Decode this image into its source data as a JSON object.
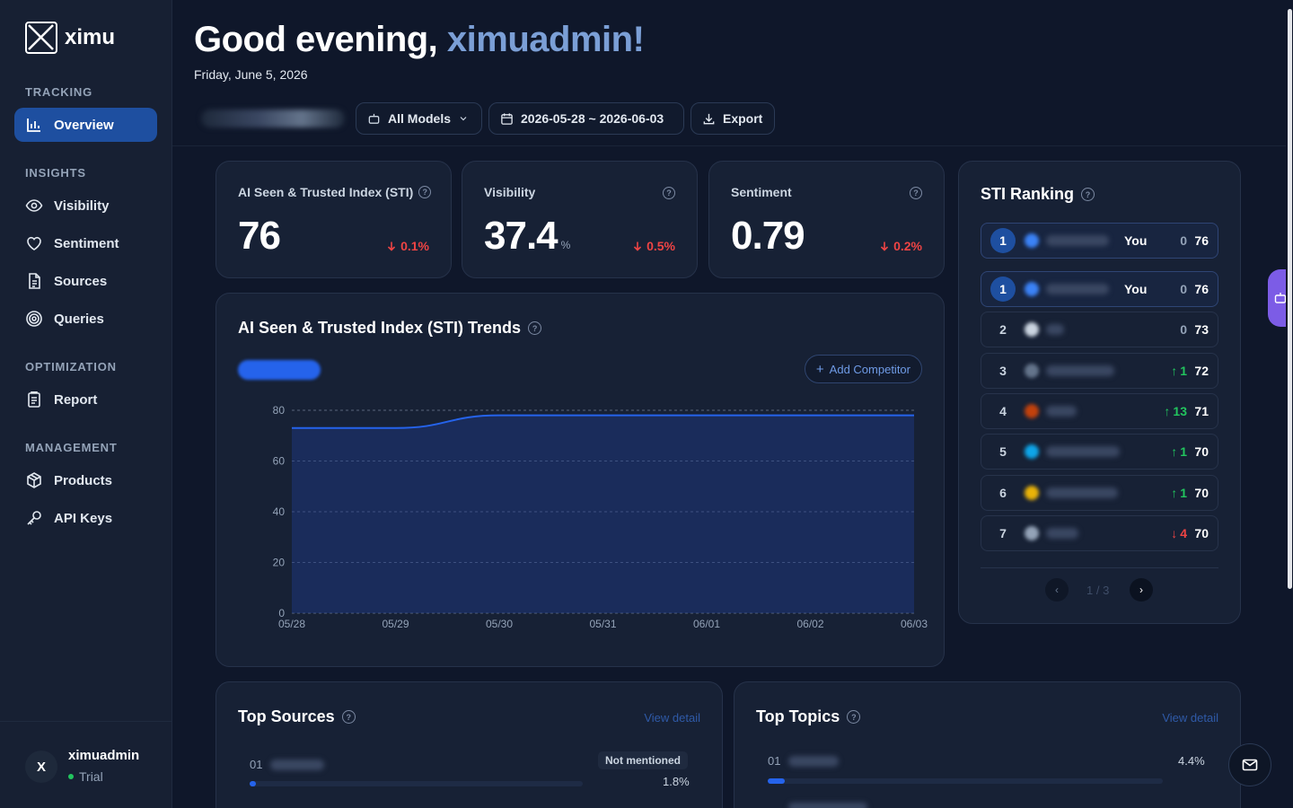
{
  "app": {
    "name": "ximu"
  },
  "sidebar": {
    "sections": [
      {
        "title": "TRACKING"
      },
      {
        "title": "INSIGHTS"
      },
      {
        "title": "OPTIMIZATION"
      },
      {
        "title": "MANAGEMENT"
      }
    ],
    "items": [
      {
        "label": "Overview",
        "icon": "bar-chart-icon",
        "active": true
      },
      {
        "label": "Visibility",
        "icon": "eye-icon"
      },
      {
        "label": "Sentiment",
        "icon": "heart-icon"
      },
      {
        "label": "Sources",
        "icon": "document-icon"
      },
      {
        "label": "Queries",
        "icon": "target-icon"
      },
      {
        "label": "Report",
        "icon": "clipboard-icon"
      },
      {
        "label": "Products",
        "icon": "box-icon"
      },
      {
        "label": "API Keys",
        "icon": "key-icon"
      }
    ],
    "user": {
      "avatar_initial": "X",
      "name": "ximuadmin",
      "plan": "Trial"
    }
  },
  "header": {
    "greeting_prefix": "Good evening,",
    "greeting_name": "ximuadmin!",
    "date": "Friday, June 5, 2026"
  },
  "toolbar": {
    "model_select": "All Models",
    "date_range": "2026-05-28 ~ 2026-06-03",
    "export_label": "Export"
  },
  "kpis": [
    {
      "label": "AI Seen & Trusted Index (STI)",
      "value": "76",
      "unit": "",
      "change": "0.1%",
      "direction": "down"
    },
    {
      "label": "Visibility",
      "value": "37.4",
      "unit": "%",
      "change": "0.5%",
      "direction": "down"
    },
    {
      "label": "Sentiment",
      "value": "0.79",
      "unit": "",
      "change": "0.2%",
      "direction": "down"
    }
  ],
  "trends": {
    "title": "AI Seen & Trusted Index (STI) Trends",
    "add_competitor": "Add Competitor"
  },
  "chart_data": {
    "type": "area",
    "x": [
      "05/28",
      "05/29",
      "05/30",
      "05/31",
      "06/01",
      "06/02",
      "06/03"
    ],
    "series": [
      {
        "values": [
          73,
          73,
          78,
          78,
          78,
          78,
          78
        ]
      }
    ],
    "ylim": [
      0,
      80
    ],
    "yticks": [
      0,
      20,
      40,
      60,
      80
    ],
    "grid": true
  },
  "ranking": {
    "title": "STI Ranking",
    "you_label": "You",
    "pinned": {
      "rank": "1",
      "change": "0",
      "score": "76"
    },
    "rows": [
      {
        "rank": "1",
        "you": true,
        "change": "0",
        "dir": "flat",
        "score": "76",
        "logo_color": "#3b82f6"
      },
      {
        "rank": "2",
        "you": false,
        "change": "0",
        "dir": "flat",
        "score": "73",
        "logo_color": "#cbd5e1"
      },
      {
        "rank": "3",
        "you": false,
        "change": "1",
        "dir": "up",
        "score": "72",
        "logo_color": "#64748b"
      },
      {
        "rank": "4",
        "you": false,
        "change": "13",
        "dir": "up",
        "score": "71",
        "logo_color": "#c2410c"
      },
      {
        "rank": "5",
        "you": false,
        "change": "1",
        "dir": "up",
        "score": "70",
        "logo_color": "#0ea5e9"
      },
      {
        "rank": "6",
        "you": false,
        "change": "1",
        "dir": "up",
        "score": "70",
        "logo_color": "#eab308"
      },
      {
        "rank": "7",
        "you": false,
        "change": "4",
        "dir": "down",
        "score": "70",
        "logo_color": "#94a3b8"
      }
    ],
    "page": "1 / 3"
  },
  "top_sources": {
    "title": "Top Sources",
    "view_detail": "View detail",
    "rows": [
      {
        "index": "01",
        "badge": "Not mentioned",
        "percent": "1.8%",
        "fill": 0.018
      }
    ]
  },
  "top_topics": {
    "title": "Top Topics",
    "view_detail": "View detail",
    "rows": [
      {
        "index": "01",
        "percent": "4.4%",
        "fill": 0.044
      }
    ]
  },
  "colors": {
    "accent": "#1e4fa0",
    "up": "#22c55e",
    "down": "#ef4444",
    "chart_line": "#2563eb"
  }
}
